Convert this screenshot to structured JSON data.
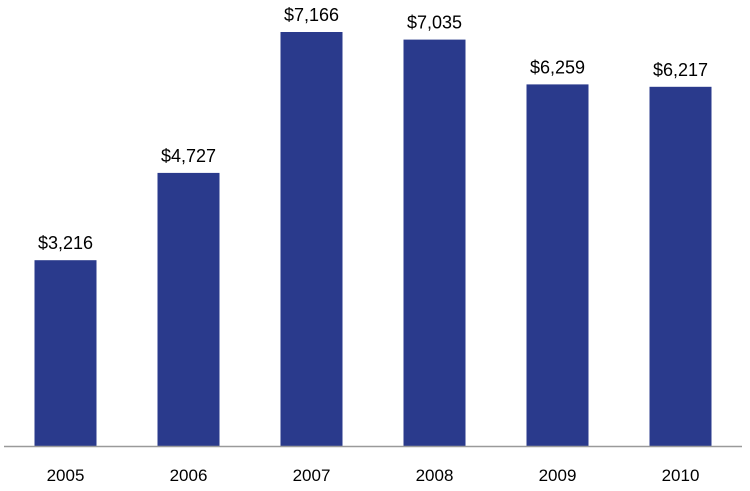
{
  "chart_data": {
    "type": "bar",
    "title": "",
    "xlabel": "",
    "ylabel": "",
    "categories": [
      "2005",
      "2006",
      "2007",
      "2008",
      "2009",
      "2010"
    ],
    "values": [
      3216,
      4727,
      7166,
      7035,
      6259,
      6217
    ],
    "data_labels": [
      "$3,216",
      "$4,727",
      "$7,166",
      "$7,035",
      "$6,259",
      "$6,217"
    ],
    "ylim": [
      0,
      7166
    ],
    "grid": false,
    "legend": "none",
    "colors": {
      "bar": "#2a3a8c",
      "axis": "#9a9a9a",
      "text": "#000000"
    }
  }
}
